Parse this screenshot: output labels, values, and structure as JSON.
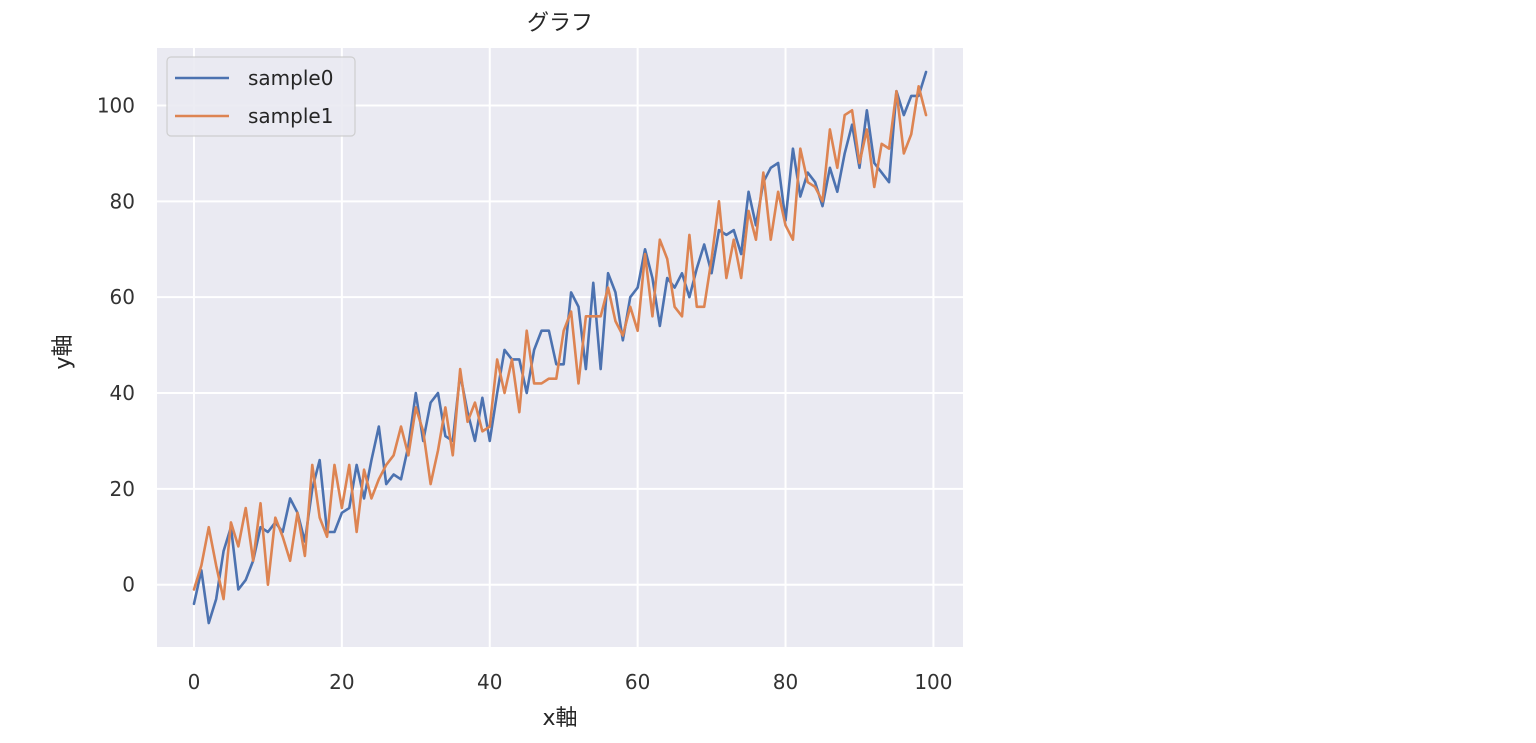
{
  "chart_data": {
    "type": "line",
    "title": "グラフ",
    "xlabel": "x軸",
    "ylabel": "y軸",
    "xlim": [
      -5,
      104
    ],
    "ylim": [
      -13,
      112
    ],
    "xticks": [
      0,
      20,
      40,
      60,
      80,
      100
    ],
    "yticks": [
      0,
      20,
      40,
      60,
      80,
      100
    ],
    "grid": true,
    "legend_position": "upper-left",
    "x": [
      0,
      1,
      2,
      3,
      4,
      5,
      6,
      7,
      8,
      9,
      10,
      11,
      12,
      13,
      14,
      15,
      16,
      17,
      18,
      19,
      20,
      21,
      22,
      23,
      24,
      25,
      26,
      27,
      28,
      29,
      30,
      31,
      32,
      33,
      34,
      35,
      36,
      37,
      38,
      39,
      40,
      41,
      42,
      43,
      44,
      45,
      46,
      47,
      48,
      49,
      50,
      51,
      52,
      53,
      54,
      55,
      56,
      57,
      58,
      59,
      60,
      61,
      62,
      63,
      64,
      65,
      66,
      67,
      68,
      69,
      70,
      71,
      72,
      73,
      74,
      75,
      76,
      77,
      78,
      79,
      80,
      81,
      82,
      83,
      84,
      85,
      86,
      87,
      88,
      89,
      90,
      91,
      92,
      93,
      94,
      95,
      96,
      97,
      98,
      99
    ],
    "series": [
      {
        "name": "sample0",
        "color": "#4c72b0",
        "values": [
          -4,
          3,
          -8,
          -3,
          7,
          12,
          -1,
          1,
          5,
          12,
          11,
          13,
          11,
          18,
          15,
          9,
          20,
          26,
          11,
          11,
          15,
          16,
          25,
          18,
          26,
          33,
          21,
          23,
          22,
          29,
          40,
          30,
          38,
          40,
          31,
          30,
          44,
          36,
          30,
          39,
          30,
          40,
          49,
          47,
          47,
          40,
          49,
          53,
          53,
          46,
          46,
          61,
          58,
          45,
          63,
          45,
          65,
          61,
          51,
          60,
          62,
          70,
          64,
          54,
          64,
          62,
          65,
          60,
          66,
          71,
          65,
          74,
          73,
          74,
          69,
          82,
          75,
          84,
          87,
          88,
          76,
          91,
          81,
          86,
          84,
          79,
          87,
          82,
          90,
          96,
          87,
          99,
          88,
          86,
          84,
          103,
          98,
          102,
          102,
          107
        ]
      },
      {
        "name": "sample1",
        "color": "#dd8452",
        "values": [
          -1,
          4,
          12,
          4,
          -3,
          13,
          8,
          16,
          5,
          17,
          0,
          14,
          10,
          5,
          15,
          6,
          25,
          14,
          10,
          25,
          16,
          25,
          11,
          24,
          18,
          22,
          25,
          27,
          33,
          27,
          37,
          32,
          21,
          28,
          37,
          27,
          45,
          34,
          38,
          32,
          33,
          47,
          40,
          47,
          36,
          53,
          42,
          42,
          43,
          43,
          53,
          57,
          42,
          56,
          56,
          56,
          62,
          55,
          52,
          58,
          53,
          69,
          56,
          72,
          68,
          58,
          56,
          73,
          58,
          58,
          68,
          80,
          64,
          72,
          64,
          78,
          72,
          86,
          72,
          82,
          75,
          72,
          91,
          84,
          83,
          80,
          95,
          87,
          98,
          99,
          88,
          95,
          83,
          92,
          91,
          103,
          90,
          94,
          104,
          98
        ]
      }
    ]
  }
}
